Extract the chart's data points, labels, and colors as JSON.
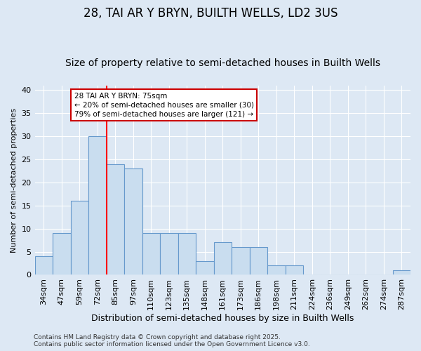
{
  "title": "28, TAI AR Y BRYN, BUILTH WELLS, LD2 3US",
  "subtitle": "Size of property relative to semi-detached houses in Builth Wells",
  "xlabel": "Distribution of semi-detached houses by size in Builth Wells",
  "ylabel": "Number of semi-detached properties",
  "categories": [
    "34sqm",
    "47sqm",
    "59sqm",
    "72sqm",
    "85sqm",
    "97sqm",
    "110sqm",
    "123sqm",
    "135sqm",
    "148sqm",
    "161sqm",
    "173sqm",
    "186sqm",
    "198sqm",
    "211sqm",
    "224sqm",
    "236sqm",
    "249sqm",
    "262sqm",
    "274sqm",
    "287sqm"
  ],
  "values": [
    4,
    9,
    16,
    30,
    24,
    23,
    9,
    9,
    9,
    3,
    7,
    6,
    6,
    2,
    2,
    0,
    0,
    0,
    0,
    0,
    1
  ],
  "bar_color": "#c9ddef",
  "bar_edge_color": "#6699cc",
  "background_color": "#dde8f4",
  "grid_color": "#ffffff",
  "red_line_x": 3.5,
  "annotation_line1": "28 TAI AR Y BRYN: 75sqm",
  "annotation_line2": "← 20% of semi-detached houses are smaller (30)",
  "annotation_line3": "79% of semi-detached houses are larger (121) →",
  "annotation_box_color": "#ffffff",
  "annotation_box_edge_color": "#cc0000",
  "footer": "Contains HM Land Registry data © Crown copyright and database right 2025.\nContains public sector information licensed under the Open Government Licence v3.0.",
  "ylim": [
    0,
    41
  ],
  "yticks": [
    0,
    5,
    10,
    15,
    20,
    25,
    30,
    35,
    40
  ],
  "title_fontsize": 12,
  "subtitle_fontsize": 10,
  "xlabel_fontsize": 9,
  "ylabel_fontsize": 8,
  "tick_fontsize": 8,
  "footer_fontsize": 6.5
}
